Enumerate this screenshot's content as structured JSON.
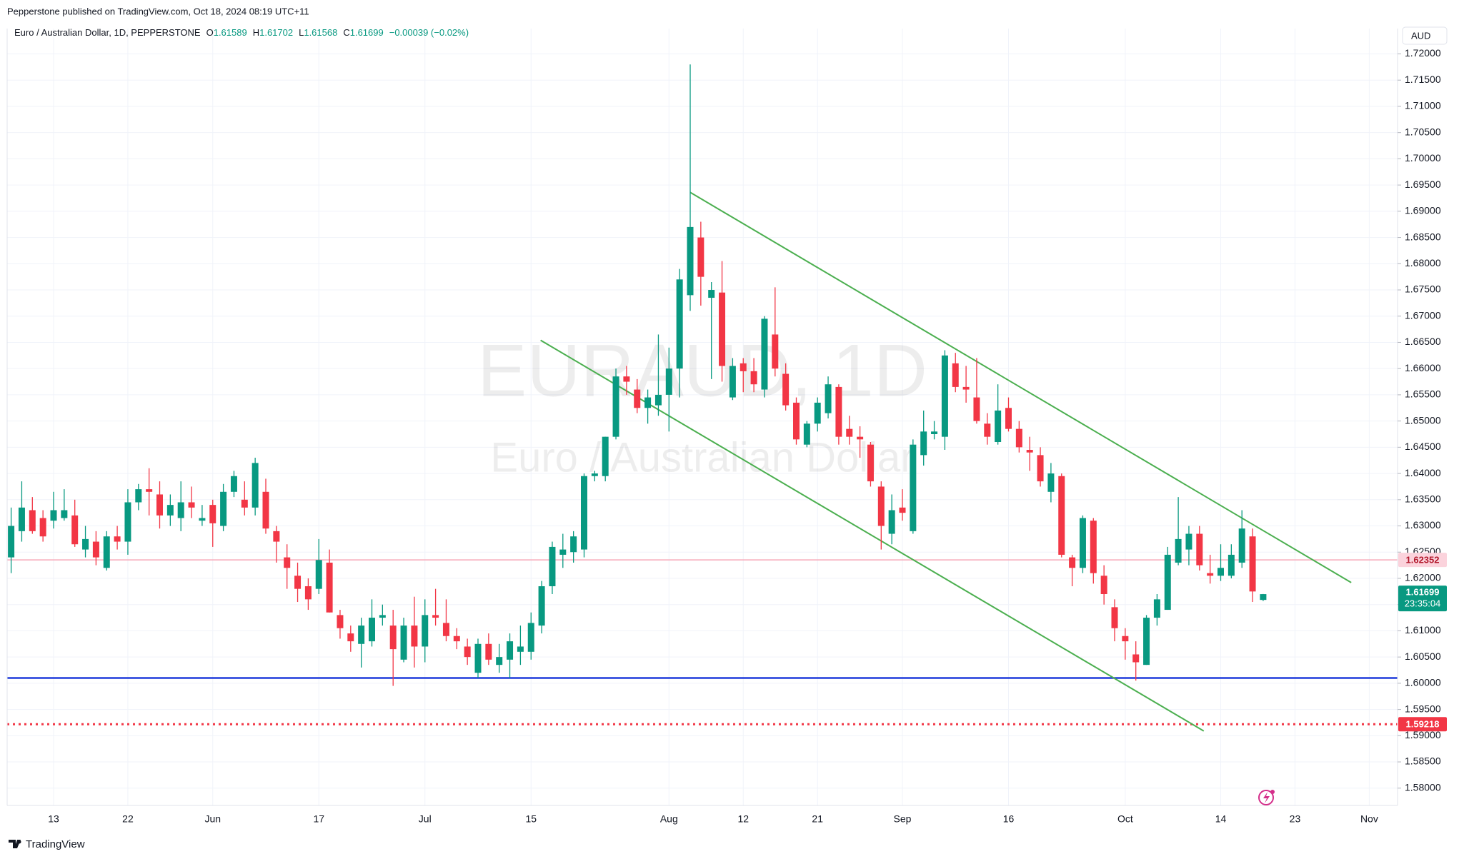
{
  "header": "Pepperstone published on TradingView.com, Oct 18, 2024 08:19 UTC+11",
  "footer": "TradingView",
  "currency": "AUD",
  "chart_data": {
    "type": "candlestick",
    "legend": {
      "title": "Euro / Australian Dollar, 1D, PEPPERSTONE",
      "items": [
        {
          "label": "O",
          "value": "1.61589"
        },
        {
          "label": "H",
          "value": "1.61702"
        },
        {
          "label": "L",
          "value": "1.61568"
        },
        {
          "label": "C",
          "value": "1.61699"
        }
      ],
      "change": "−0.00039 (−0.02%)"
    },
    "watermark": {
      "symbol": "EURAUD, 1D",
      "description": "Euro / Australian Dollar"
    },
    "up_color": "#089981",
    "down_color": "#f23645",
    "categories": [
      null,
      null,
      null,
      null,
      "13",
      null,
      null,
      null,
      null,
      null,
      null,
      "22",
      null,
      null,
      null,
      null,
      null,
      null,
      null,
      "Jun",
      null,
      null,
      null,
      null,
      null,
      null,
      null,
      null,
      null,
      "17",
      null,
      null,
      null,
      null,
      null,
      null,
      null,
      null,
      null,
      "Jul",
      null,
      null,
      null,
      null,
      null,
      null,
      null,
      null,
      null,
      "15",
      null,
      null,
      null,
      null,
      null,
      null,
      null,
      null,
      null,
      null,
      null,
      null,
      "Aug",
      null,
      null,
      null,
      null,
      null,
      null,
      "12",
      null,
      null,
      null,
      null,
      null,
      null,
      "21",
      null,
      null,
      null,
      null,
      null,
      null,
      null,
      "Sep",
      null,
      null,
      null,
      null,
      null,
      null,
      null,
      null,
      null,
      "16",
      null,
      null,
      null,
      null,
      null,
      null,
      null,
      null,
      null,
      null,
      "Oct",
      null,
      null,
      null,
      null,
      null,
      null,
      null,
      null,
      "14",
      null,
      null,
      null,
      null,
      null,
      null,
      "23",
      null,
      null,
      null,
      null,
      null,
      null,
      "Nov",
      null,
      null
    ],
    "open": [
      1.624,
      1.629,
      1.633,
      1.6315,
      1.631,
      1.6315,
      1.632,
      1.6255,
      1.627,
      1.622,
      1.628,
      1.627,
      1.6345,
      1.637,
      1.636,
      1.632,
      1.6315,
      1.6345,
      1.631,
      1.634,
      1.63,
      1.6365,
      1.635,
      1.6335,
      1.6365,
      1.629,
      1.624,
      1.6205,
      1.6185,
      1.618,
      1.623,
      1.613,
      1.6095,
      1.6075,
      1.608,
      1.6125,
      1.611,
      1.6045,
      1.611,
      1.607,
      1.613,
      1.6115,
      1.609,
      1.607,
      1.602,
      1.6075,
      1.6035,
      1.6045,
      1.606,
      1.606,
      1.611,
      1.6185,
      1.6245,
      1.625,
      1.6255,
      1.6395,
      1.6395,
      1.647,
      1.6585,
      1.656,
      1.6525,
      1.653,
      1.655,
      1.66,
      1.674,
      1.685,
      1.6735,
      1.6745,
      1.6545,
      1.661,
      1.6595,
      1.656,
      1.6665,
      1.659,
      1.6535,
      1.6455,
      1.6495,
      1.6515,
      1.6565,
      1.6485,
      1.647,
      1.6455,
      1.6375,
      1.6285,
      1.6335,
      1.629,
      1.6435,
      1.6475,
      1.647,
      1.661,
      1.6565,
      1.6545,
      1.6495,
      1.646,
      1.6525,
      1.6485,
      1.6445,
      1.6435,
      1.6365,
      1.6395,
      1.624,
      1.622,
      1.631,
      1.6205,
      1.6145,
      1.609,
      1.6055,
      1.6035,
      1.6125,
      1.614,
      1.623,
      1.6255,
      1.6285,
      1.621,
      1.6205,
      1.6205,
      1.623,
      1.628,
      1.61589,
      null,
      null,
      null,
      null,
      null,
      null,
      null,
      null,
      null,
      null,
      null,
      null
    ],
    "high": [
      1.6335,
      1.6385,
      1.6355,
      1.633,
      1.6365,
      1.637,
      1.635,
      1.63,
      1.629,
      1.629,
      1.63,
      1.637,
      1.638,
      1.641,
      1.6385,
      1.636,
      1.6385,
      1.6375,
      1.634,
      1.635,
      1.638,
      1.6405,
      1.6385,
      1.643,
      1.639,
      1.63,
      1.6265,
      1.623,
      1.62,
      1.6275,
      1.6255,
      1.614,
      1.611,
      1.6125,
      1.616,
      1.615,
      1.614,
      1.6125,
      1.6165,
      1.616,
      1.618,
      1.616,
      1.6105,
      1.6085,
      1.6085,
      1.6095,
      1.6075,
      1.6095,
      1.611,
      1.6135,
      1.6195,
      1.627,
      1.6285,
      1.629,
      1.64,
      1.6405,
      1.647,
      1.66,
      1.6605,
      1.658,
      1.656,
      1.6665,
      1.664,
      1.679,
      1.718,
      1.688,
      1.6765,
      1.6805,
      1.662,
      1.662,
      1.662,
      1.67,
      1.6755,
      1.661,
      1.6545,
      1.65,
      1.6545,
      1.6585,
      1.657,
      1.651,
      1.649,
      1.646,
      1.6385,
      1.636,
      1.637,
      1.6465,
      1.652,
      1.65,
      1.6635,
      1.663,
      1.6605,
      1.662,
      1.6515,
      1.657,
      1.6545,
      1.65,
      1.647,
      1.645,
      1.642,
      1.64,
      1.6245,
      1.632,
      1.6315,
      1.6225,
      1.616,
      1.6105,
      1.608,
      1.613,
      1.617,
      1.626,
      1.6355,
      1.63,
      1.63,
      1.6245,
      1.6265,
      1.6265,
      1.633,
      1.6295,
      1.61702,
      null,
      null,
      null,
      null,
      null,
      null,
      null,
      null,
      null,
      null,
      null,
      null
    ],
    "low": [
      1.621,
      1.627,
      1.6285,
      1.627,
      1.6295,
      1.631,
      1.626,
      1.624,
      1.6225,
      1.6215,
      1.6255,
      1.6245,
      1.633,
      1.632,
      1.6295,
      1.63,
      1.629,
      1.6315,
      1.63,
      1.626,
      1.629,
      1.6355,
      1.632,
      1.632,
      1.6285,
      1.623,
      1.618,
      1.6155,
      1.614,
      1.617,
      1.6135,
      1.6085,
      1.606,
      1.603,
      1.607,
      1.611,
      1.5995,
      1.604,
      1.603,
      1.604,
      1.611,
      1.608,
      1.6065,
      1.6035,
      1.601,
      1.6035,
      1.602,
      1.601,
      1.6035,
      1.6045,
      1.6095,
      1.617,
      1.622,
      1.623,
      1.624,
      1.6385,
      1.6385,
      1.6465,
      1.655,
      1.6515,
      1.6495,
      1.651,
      1.648,
      1.6545,
      1.671,
      1.672,
      1.658,
      1.6575,
      1.654,
      1.6555,
      1.6555,
      1.6545,
      1.6585,
      1.652,
      1.6455,
      1.645,
      1.648,
      1.6505,
      1.6455,
      1.6455,
      1.643,
      1.6375,
      1.6255,
      1.6265,
      1.631,
      1.6285,
      1.6415,
      1.6465,
      1.6445,
      1.6555,
      1.6535,
      1.6495,
      1.6455,
      1.6455,
      1.648,
      1.644,
      1.6405,
      1.6375,
      1.6345,
      1.624,
      1.6185,
      1.621,
      1.619,
      1.615,
      1.608,
      1.6045,
      1.6005,
      1.6035,
      1.611,
      1.614,
      1.6225,
      1.6225,
      1.6215,
      1.619,
      1.6195,
      1.62,
      1.622,
      1.6155,
      1.61568,
      null,
      null,
      null,
      null,
      null,
      null,
      null,
      null,
      null,
      null,
      null,
      null
    ],
    "close": [
      1.63,
      1.6335,
      1.629,
      1.628,
      1.633,
      1.633,
      1.6265,
      1.6275,
      1.624,
      1.628,
      1.627,
      1.6345,
      1.637,
      1.6365,
      1.632,
      1.634,
      1.6345,
      1.6335,
      1.6315,
      1.6305,
      1.6365,
      1.6395,
      1.6335,
      1.642,
      1.6295,
      1.627,
      1.622,
      1.618,
      1.616,
      1.6235,
      1.6135,
      1.6105,
      1.608,
      1.611,
      1.6125,
      1.613,
      1.6065,
      1.611,
      1.607,
      1.613,
      1.6125,
      1.609,
      1.608,
      1.605,
      1.6075,
      1.6045,
      1.605,
      1.608,
      1.607,
      1.6115,
      1.6185,
      1.626,
      1.6255,
      1.628,
      1.6395,
      1.64,
      1.647,
      1.6585,
      1.6575,
      1.6525,
      1.6545,
      1.655,
      1.66,
      1.677,
      1.687,
      1.6775,
      1.675,
      1.6605,
      1.6605,
      1.6595,
      1.657,
      1.6695,
      1.66,
      1.653,
      1.6465,
      1.6495,
      1.6535,
      1.657,
      1.647,
      1.647,
      1.6465,
      1.6385,
      1.63,
      1.633,
      1.6325,
      1.6455,
      1.648,
      1.648,
      1.6625,
      1.6565,
      1.656,
      1.65,
      1.647,
      1.652,
      1.6485,
      1.645,
      1.644,
      1.6385,
      1.64,
      1.6245,
      1.622,
      1.6315,
      1.621,
      1.617,
      1.6105,
      1.608,
      1.604,
      1.6125,
      1.616,
      1.6245,
      1.6275,
      1.6285,
      1.6225,
      1.6205,
      1.622,
      1.6245,
      1.6295,
      1.6175,
      1.61699,
      null,
      null,
      null,
      null,
      null,
      null,
      null,
      null,
      null,
      null,
      null,
      null
    ],
    "ylim": [
      1.5767,
      1.7232
    ],
    "yticks": [
      {
        "value": 1.58,
        "label": "1.58000"
      },
      {
        "value": 1.585,
        "label": "1.58500"
      },
      {
        "value": 1.59,
        "label": "1.59000"
      },
      {
        "value": 1.595,
        "label": "1.59500"
      },
      {
        "value": 1.6,
        "label": "1.60000"
      },
      {
        "value": 1.605,
        "label": "1.60500"
      },
      {
        "value": 1.61,
        "label": "1.61000"
      },
      {
        "value": 1.615,
        "label": "1.61500"
      },
      {
        "value": 1.62,
        "label": "1.62000"
      },
      {
        "value": 1.625,
        "label": "1.62500"
      },
      {
        "value": 1.63,
        "label": "1.63000"
      },
      {
        "value": 1.635,
        "label": "1.63500"
      },
      {
        "value": 1.64,
        "label": "1.64000"
      },
      {
        "value": 1.645,
        "label": "1.64500"
      },
      {
        "value": 1.65,
        "label": "1.65000"
      },
      {
        "value": 1.655,
        "label": "1.65500"
      },
      {
        "value": 1.66,
        "label": "1.66000"
      },
      {
        "value": 1.665,
        "label": "1.66500"
      },
      {
        "value": 1.67,
        "label": "1.67000"
      },
      {
        "value": 1.675,
        "label": "1.67500"
      },
      {
        "value": 1.68,
        "label": "1.68000"
      },
      {
        "value": 1.685,
        "label": "1.68500"
      },
      {
        "value": 1.69,
        "label": "1.69000"
      },
      {
        "value": 1.695,
        "label": "1.69500"
      },
      {
        "value": 1.7,
        "label": "1.70000"
      },
      {
        "value": 1.705,
        "label": "1.70500"
      },
      {
        "value": 1.71,
        "label": "1.71000"
      },
      {
        "value": 1.715,
        "label": "1.71500"
      },
      {
        "value": 1.72,
        "label": "1.72000"
      }
    ],
    "grid": true,
    "price_lines": [
      {
        "value": 1.62352,
        "label": "1.62352",
        "color": "#f7a8b8",
        "style": "solid",
        "label_bg": "#fbd3dc",
        "label_color": "#b2182b"
      },
      {
        "value": 1.59218,
        "label": "1.59218",
        "color": "#f23645",
        "style": "dotted",
        "label_bg": "#f23645",
        "label_color": "#ffffff"
      },
      {
        "value": 1.601,
        "color": "#1e3adb",
        "style": "solid"
      }
    ],
    "last_price": {
      "value": 1.61699,
      "label": "1.61699",
      "countdown": "23:35:04",
      "color": "#089981"
    },
    "trendlines": [
      {
        "color": "#4caf50",
        "points": [
          [
            64,
            1.6936
          ],
          [
            126.3,
            1.6192
          ]
        ]
      },
      {
        "color": "#4caf50",
        "points": [
          [
            49.9,
            1.6654
          ],
          [
            112.4,
            1.5909
          ]
        ]
      }
    ]
  }
}
